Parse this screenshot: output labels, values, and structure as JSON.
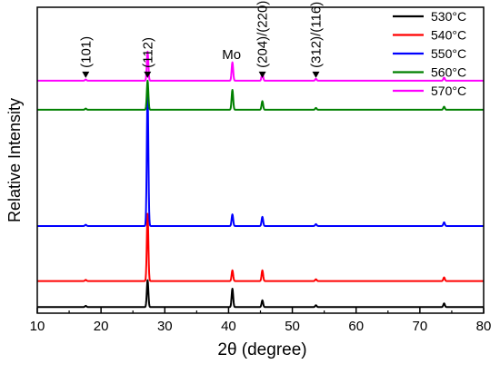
{
  "chart_data": {
    "type": "line",
    "title": "",
    "xlabel": "2θ (degree)",
    "ylabel": "Relative Intensity",
    "xlim": [
      10,
      80
    ],
    "xticks": [
      10,
      20,
      30,
      40,
      50,
      60,
      70,
      80
    ],
    "y_ticks_shown": false,
    "grid": false,
    "legend_position": "top-right",
    "series": [
      {
        "name": "530°C",
        "color": "#000000",
        "baseline": 0.02,
        "peaks": [
          {
            "x": 17.6,
            "h": 0.004
          },
          {
            "x": 27.3,
            "h": 0.088
          },
          {
            "x": 40.6,
            "h": 0.06
          },
          {
            "x": 45.3,
            "h": 0.022
          },
          {
            "x": 53.7,
            "h": 0.006
          },
          {
            "x": 73.8,
            "h": 0.012
          }
        ]
      },
      {
        "name": "540°C",
        "color": "#ff0000",
        "baseline": 0.105,
        "peaks": [
          {
            "x": 17.6,
            "h": 0.004
          },
          {
            "x": 27.3,
            "h": 0.22
          },
          {
            "x": 40.6,
            "h": 0.035
          },
          {
            "x": 45.3,
            "h": 0.035
          },
          {
            "x": 53.7,
            "h": 0.006
          },
          {
            "x": 73.8,
            "h": 0.012
          }
        ]
      },
      {
        "name": "550°C",
        "color": "#0000ff",
        "baseline": 0.285,
        "peaks": [
          {
            "x": 17.6,
            "h": 0.004
          },
          {
            "x": 27.3,
            "h": 0.435
          },
          {
            "x": 40.6,
            "h": 0.038
          },
          {
            "x": 45.3,
            "h": 0.03
          },
          {
            "x": 53.7,
            "h": 0.006
          },
          {
            "x": 73.8,
            "h": 0.012
          }
        ]
      },
      {
        "name": "560°C",
        "color": "#008000",
        "baseline": 0.665,
        "peaks": [
          {
            "x": 17.6,
            "h": 0.004
          },
          {
            "x": 27.3,
            "h": 0.095
          },
          {
            "x": 40.6,
            "h": 0.065
          },
          {
            "x": 45.3,
            "h": 0.028
          },
          {
            "x": 53.7,
            "h": 0.006
          },
          {
            "x": 73.8,
            "h": 0.01
          }
        ]
      },
      {
        "name": "570°C",
        "color": "#ff00ff",
        "baseline": 0.76,
        "peaks": [
          {
            "x": 17.6,
            "h": 0.004
          },
          {
            "x": 27.3,
            "h": 0.095
          },
          {
            "x": 40.6,
            "h": 0.06
          },
          {
            "x": 45.3,
            "h": 0.025
          },
          {
            "x": 53.7,
            "h": 0.006
          },
          {
            "x": 73.8,
            "h": 0.01
          }
        ]
      }
    ],
    "annotations": [
      {
        "text": "(101)",
        "x": 17.6,
        "marker": true
      },
      {
        "text": "(112)",
        "x": 27.3,
        "marker": true
      },
      {
        "text": "Mo",
        "x": 40.6,
        "marker": false
      },
      {
        "text": "(204)/(220)",
        "x": 45.3,
        "marker": true
      },
      {
        "text": "(312)/(116)",
        "x": 53.7,
        "marker": true
      }
    ]
  }
}
